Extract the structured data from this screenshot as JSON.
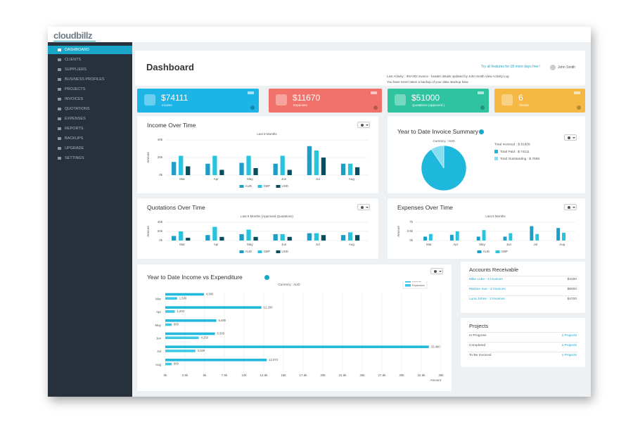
{
  "logo": "cloudbillz",
  "sidebar": {
    "items": [
      "DASHBOARD",
      "CLIENTS",
      "SUPPLIERS",
      "BUSINESS PROFILES",
      "PROJECTS",
      "INVOICES",
      "QUOTATIONS",
      "EXPENSES",
      "REPORTS",
      "BACKUPS",
      "UPGRADE",
      "SETTINGS"
    ]
  },
  "header": {
    "title": "Dashboard",
    "trial": "Try all features for 18 more days free !",
    "user": "John Smith",
    "activity": "Last Activity : INV-002 invoice - header details updated by John Smith View Activity Log",
    "backup": "You have never taken a backup of your data. Backup Now"
  },
  "stats": [
    {
      "value": "$74111",
      "label": "Income",
      "color": "#1cb5e6"
    },
    {
      "value": "$11670",
      "label": "Expenses",
      "color": "#f1726a"
    },
    {
      "value": "$51000",
      "label": "Quotations (approved )",
      "color": "#2fc39f"
    },
    {
      "value": "6",
      "label": "Clients",
      "color": "#f5b843"
    }
  ],
  "income_chart": {
    "type": "bar",
    "title": "Income Over Time",
    "subtitle": "Last 6 Months",
    "y_label": "Amount",
    "categories": [
      "Mar",
      "Apr",
      "May",
      "Jun",
      "Jul",
      "Aug"
    ],
    "ylim": [
      0,
      40000
    ],
    "yticks": [
      {
        "value": 0,
        "label": "0k"
      },
      {
        "value": 20000,
        "label": "20k"
      },
      {
        "value": 40000,
        "label": "40k"
      }
    ],
    "grid": true,
    "series": [
      {
        "name": "AUD",
        "color": "#1b9ec7",
        "values": [
          15000,
          13000,
          14000,
          13000,
          33000,
          13000
        ]
      },
      {
        "name": "GBP",
        "color": "#27c4e0",
        "values": [
          22000,
          22000,
          22000,
          22000,
          28000,
          13000
        ]
      },
      {
        "name": "USD",
        "color": "#0a4d5e",
        "values": [
          10000,
          6000,
          8000,
          6000,
          20000,
          9000
        ]
      }
    ]
  },
  "invoice_summary": {
    "type": "pie",
    "title": "Year to Date Invoice Summary",
    "subtitle": "Currency : AUD",
    "total": "Total Invoiced : $ 81809",
    "labels": [
      "Total Paid : $ 74111",
      "Total Outstanding : $ 7698"
    ],
    "values": [
      74111,
      7698
    ],
    "colors": [
      "#1db8dc",
      "#86def0"
    ]
  },
  "quotations_chart": {
    "type": "bar",
    "title": "Quotations Over Time",
    "subtitle": "Last 6 Months (Approved Quotations)",
    "y_label": "Amount",
    "categories": [
      "Mar",
      "Apr",
      "May",
      "Jun",
      "Jul",
      "Aug"
    ],
    "ylim": [
      0,
      40000
    ],
    "yticks": [
      {
        "value": 0,
        "label": "0k"
      },
      {
        "value": 20000,
        "label": "20k"
      },
      {
        "value": 40000,
        "label": "40k"
      }
    ],
    "grid": true,
    "series": [
      {
        "name": "AUD",
        "color": "#1b9ec7",
        "values": [
          10000,
          12000,
          14000,
          14000,
          16000,
          12000
        ]
      },
      {
        "name": "GBP",
        "color": "#27c4e0",
        "values": [
          20000,
          30000,
          24000,
          14000,
          16000,
          18000
        ]
      },
      {
        "name": "USD",
        "color": "#0a4d5e",
        "values": [
          6000,
          8000,
          8000,
          8000,
          12000,
          12000
        ]
      }
    ]
  },
  "expenses_chart": {
    "type": "bar",
    "title": "Expenses Over Time",
    "subtitle": "Last 6 Months",
    "y_label": "Amount",
    "categories": [
      "Mar",
      "Apr",
      "May",
      "Jun",
      "Jul",
      "Aug"
    ],
    "ylim": [
      0,
      7000
    ],
    "yticks": [
      {
        "value": 0,
        "label": "0k"
      },
      {
        "value": 3500,
        "label": "3.5k"
      },
      {
        "value": 7000,
        "label": "7k"
      }
    ],
    "grid": true,
    "series": [
      {
        "name": "AUD",
        "color": "#1b9ec7",
        "values": [
          1500,
          2200,
          1500,
          1500,
          5500,
          4800
        ]
      },
      {
        "name": "GBP",
        "color": "#27c4e0",
        "values": [
          2500,
          3500,
          4000,
          2800,
          2500,
          3000
        ]
      }
    ]
  },
  "ytd_chart": {
    "type": "hbar",
    "title": "Year to Date Income vs Expenditure",
    "subtitle": "Currency : AUD",
    "x_label": "Amount",
    "categories": [
      "Mar",
      "Apr",
      "May",
      "Jun",
      "Jul",
      "Aug"
    ],
    "xlim": [
      0,
      35000
    ],
    "xticks": [
      {
        "value": 0,
        "label": "0k"
      },
      {
        "value": 2500,
        "label": "2.5k"
      },
      {
        "value": 5000,
        "label": "5k"
      },
      {
        "value": 7500,
        "label": "7.5k"
      },
      {
        "value": 10000,
        "label": "10k"
      },
      {
        "value": 12500,
        "label": "12.5k"
      },
      {
        "value": 15000,
        "label": "15k"
      },
      {
        "value": 17500,
        "label": "17.5k"
      },
      {
        "value": 20000,
        "label": "20k"
      },
      {
        "value": 22500,
        "label": "22.5k"
      },
      {
        "value": 25000,
        "label": "25k"
      },
      {
        "value": 27500,
        "label": "27.5k"
      },
      {
        "value": 30000,
        "label": "30k"
      },
      {
        "value": 32500,
        "label": "32.5k"
      },
      {
        "value": 35000,
        "label": "35k"
      }
    ],
    "grid": true,
    "series": [
      {
        "name": "Income",
        "color": "#22b8dc",
        "values": [
          4900,
          12200,
          6480,
          6300,
          33460,
          12870
        ],
        "value_labels": [
          "4,900",
          "12,200",
          "6,480",
          "6,300",
          "33,460",
          "12,870"
        ]
      },
      {
        "name": "Expenses",
        "color": "#3cc9e6",
        "values": [
          1500,
          1200,
          800,
          4250,
          3820,
          800
        ],
        "value_labels": [
          "1,500",
          "1,200",
          "800",
          "4,250",
          "3,820",
          "800"
        ]
      }
    ]
  },
  "accounts": {
    "title": "Accounts Receivable",
    "rows": [
      [
        "Mike Luke - 2 Invoices",
        "$4150"
      ],
      [
        "Martine Sue - 2 Invoices",
        "$6000"
      ],
      [
        "Luna Johns - 3 Invoices",
        "$4700"
      ]
    ]
  },
  "projects": {
    "title": "Projects",
    "rows": [
      [
        "In Progress",
        "1 Projects"
      ],
      [
        "Completed",
        "1 Projects"
      ],
      [
        "To Be Invoiced",
        "1 Projects"
      ]
    ]
  }
}
